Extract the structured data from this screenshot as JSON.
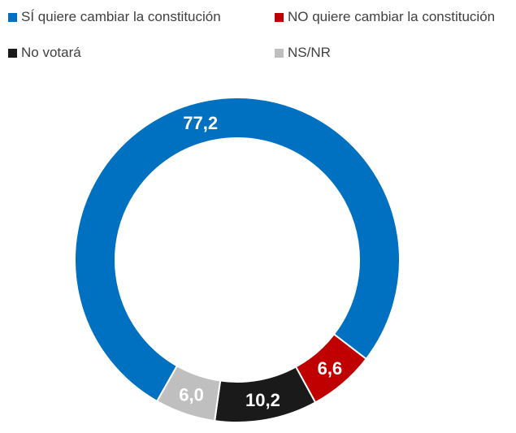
{
  "chart_data": {
    "type": "pie",
    "donut": true,
    "legend_position": "top",
    "series": [
      {
        "name": "SÍ quiere cambiar la constitución",
        "value": 77.2,
        "label": "77,2",
        "color": "#0070C0"
      },
      {
        "name": "NO quiere cambiar la constitución",
        "value": 6.6,
        "label": "6,6",
        "color": "#C00000"
      },
      {
        "name": "No votará",
        "value": 10.2,
        "label": "10,2",
        "color": "#1A1A1A"
      },
      {
        "name": "NS/NR",
        "value": 6.0,
        "label": "6,0",
        "color": "#BFBFBF"
      }
    ]
  }
}
